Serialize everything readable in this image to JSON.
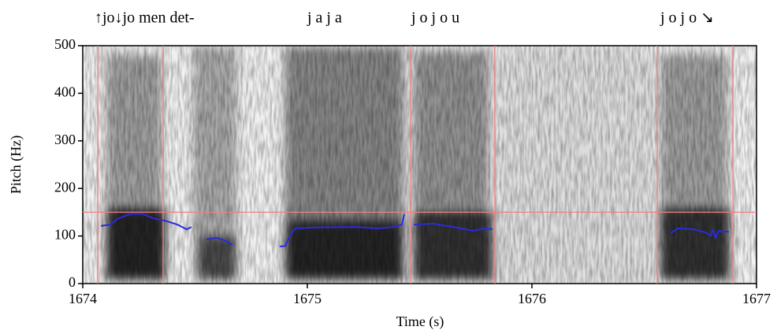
{
  "chart_data": {
    "type": "line",
    "xlabel": "Time (s)",
    "ylabel": "Pitch (Hz)",
    "xlim": [
      1674,
      1677
    ],
    "xticks": [
      1674,
      1675,
      1676,
      1677
    ],
    "ylim": [
      0,
      500
    ],
    "yticks": [
      0,
      100,
      200,
      300,
      400,
      500
    ],
    "annotations": [
      "↑jo↓jo men det-",
      "j a j a",
      "j o j o u",
      "j o j o ↘"
    ],
    "boundaries": [
      1674.067,
      1674.358,
      1675.46,
      1675.835,
      1676.558,
      1676.895
    ],
    "boundary_color": "#f08080",
    "reference_line": 150,
    "series": [
      {
        "color": "#2a2adf",
        "x": [
          1674.081,
          1674.123,
          1674.158,
          1674.211,
          1674.263,
          1674.316,
          1674.368,
          1674.421,
          1674.463,
          1674.484,
          null,
          1674.551,
          1674.596,
          1674.632,
          1674.667,
          null,
          1674.877,
          1674.902,
          1674.923,
          1674.947,
          1675.035,
          1675.211,
          1675.316,
          1675.386,
          1675.421,
          1675.432,
          null,
          1675.474,
          1675.561,
          1675.649,
          1675.737,
          1675.789,
          1675.825,
          null,
          1676.618,
          1676.649,
          1676.719,
          1676.772,
          1676.796,
          1676.807,
          1676.818,
          1676.832,
          1676.877
        ],
        "values": [
          121,
          124,
          137,
          146,
          147,
          137,
          132,
          124,
          114,
          119,
          null,
          93,
          96,
          91,
          81,
          null,
          78,
          79,
          103,
          116,
          118,
          119,
          116,
          119,
          124,
          146,
          null,
          124,
          126,
          119,
          111,
          116,
          114,
          null,
          106,
          116,
          114,
          108,
          101,
          113,
          96,
          111,
          109
        ]
      }
    ]
  }
}
